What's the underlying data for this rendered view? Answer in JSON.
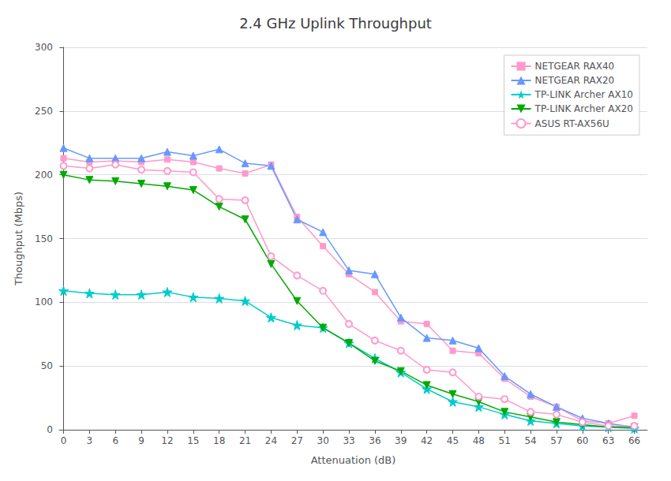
{
  "chart_data": {
    "type": "line",
    "title": "2.4 GHz Uplink Throughput",
    "xlabel": "Attenuation (dB)",
    "ylabel": "Thoughput (Mbps)",
    "x": [
      0,
      3,
      6,
      9,
      12,
      15,
      18,
      21,
      24,
      27,
      30,
      33,
      36,
      39,
      42,
      45,
      48,
      51,
      54,
      57,
      60,
      63,
      66
    ],
    "xlim": [
      -0.5,
      67.5
    ],
    "ylim": [
      0,
      300
    ],
    "xticks": [
      0,
      3,
      6,
      9,
      12,
      15,
      18,
      21,
      24,
      27,
      30,
      33,
      36,
      39,
      42,
      45,
      48,
      51,
      54,
      57,
      60,
      63,
      66
    ],
    "yticks": [
      0,
      50,
      100,
      150,
      200,
      250,
      300
    ],
    "grid": "y",
    "legend": "upper right",
    "series": [
      {
        "name": "NETGEAR RAX40",
        "color": "#FF99CC",
        "marker": "square",
        "values": [
          213,
          210,
          211,
          210,
          212,
          210,
          205,
          201,
          208,
          167,
          144,
          122,
          108,
          85,
          83,
          62,
          60,
          40,
          26,
          18,
          7,
          5,
          11
        ]
      },
      {
        "name": "NETGEAR RAX20",
        "color": "#6699FF",
        "marker": "triangle",
        "values": [
          221,
          213,
          213,
          213,
          218,
          215,
          220,
          209,
          207,
          165,
          155,
          125,
          122,
          88,
          72,
          70,
          64,
          42,
          28,
          18,
          9,
          5,
          2
        ]
      },
      {
        "name": "TP-LINK Archer AX10",
        "color": "#00CCCC",
        "marker": "star",
        "values": [
          109,
          107,
          106,
          106,
          108,
          104,
          103,
          101,
          88,
          82,
          80,
          68,
          56,
          45,
          32,
          22,
          18,
          12,
          7,
          5,
          3,
          2,
          1
        ]
      },
      {
        "name": "TP-LINK Archer AX20",
        "color": "#00AA00",
        "marker": "triangle_down",
        "values": [
          200,
          196,
          195,
          193,
          191,
          188,
          175,
          165,
          130,
          101,
          80,
          68,
          54,
          46,
          35,
          28,
          22,
          14,
          10,
          6,
          4,
          2,
          2
        ]
      },
      {
        "name": "ASUS RT-AX56U",
        "color": "#FF99CC",
        "marker": "circle_open",
        "values": [
          207,
          205,
          208,
          204,
          203,
          202,
          181,
          180,
          136,
          121,
          109,
          83,
          70,
          62,
          47,
          45,
          26,
          24,
          14,
          12,
          6,
          3,
          3
        ]
      }
    ]
  }
}
